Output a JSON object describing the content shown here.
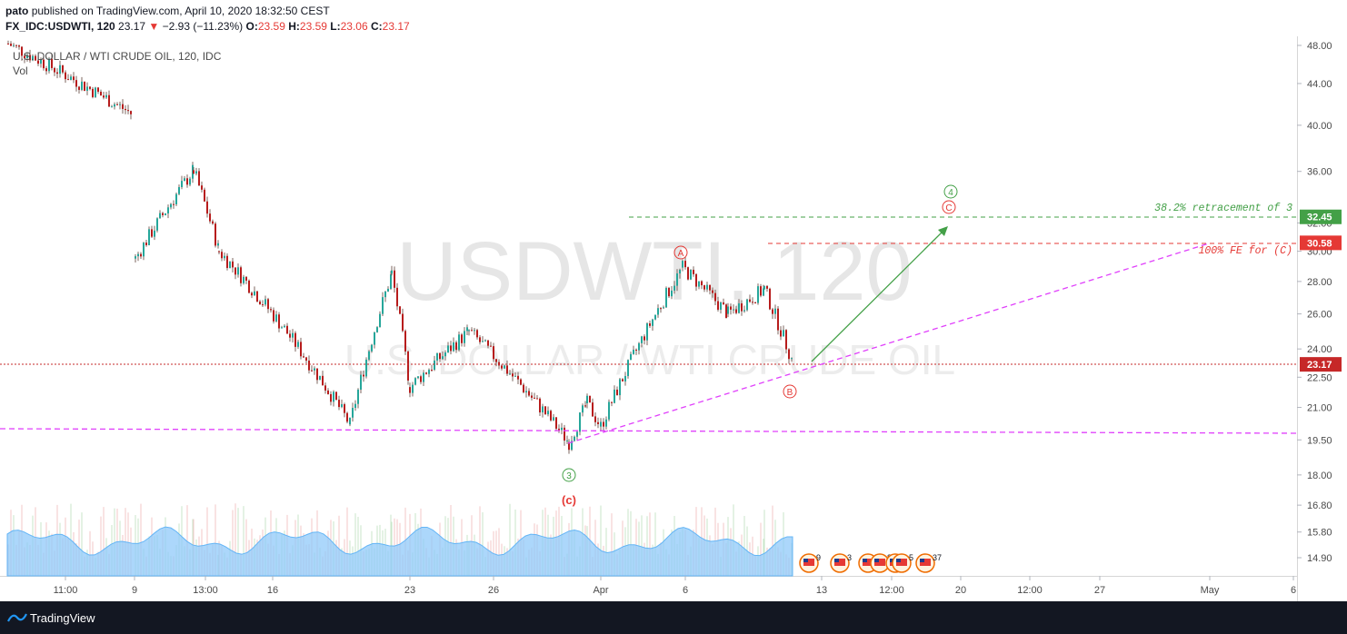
{
  "header": {
    "user": "pato",
    "published": "published on TradingView.com, April 10, 2020 18:32:50 CEST",
    "symbol": "FX_IDC:USDWTI, 120",
    "last": "23.17",
    "change_arrow": "▼",
    "change": "−2.93 (−11.23%)",
    "o_label": "O:",
    "o_value": "23.59",
    "h_label": "H:",
    "h_value": "23.59",
    "l_label": "L:",
    "l_value": "23.06",
    "c_label": "C:",
    "c_value": "23.17"
  },
  "legend": {
    "series_name": "U.S. DOLLAR / WTI CRUDE OIL, 120, IDC",
    "volume_label": "Vol"
  },
  "watermark": {
    "symbol": "USDWTI, 120",
    "description": "U.S. DOLLAR / WTI CRUDE OIL"
  },
  "footer": {
    "brand": "TradingView"
  },
  "colors": {
    "up_candle": "#26a69a",
    "down_candle": "#b71c1c",
    "volume": "#90caf9",
    "green_annotation": "#43a047",
    "red_annotation": "#e53935",
    "magenta_line": "#e040fb",
    "price_line": "#c62828"
  },
  "chart_data": {
    "type": "candlestick",
    "y_axis": {
      "ticks": [
        "48.00",
        "44.00",
        "40.00",
        "36.00",
        "32.00",
        "30.00",
        "28.00",
        "26.00",
        "24.00",
        "22.50",
        "21.00",
        "19.50",
        "18.00",
        "16.80",
        "15.80",
        "14.90"
      ],
      "ylim": [
        14.9,
        48.0
      ],
      "scale": "log"
    },
    "x_axis": {
      "ticks": [
        "11:00",
        "9",
        "13:00",
        "16",
        "23",
        "26",
        "Apr",
        "6",
        "13",
        "12:00",
        "20",
        "12:00",
        "27",
        "May",
        "6"
      ]
    },
    "price_badges": [
      {
        "label": "32.45",
        "value": 32.45,
        "color": "#43a047"
      },
      {
        "label": "30.58",
        "value": 30.58,
        "color": "#e53935"
      },
      {
        "label": "23.17",
        "value": 23.17,
        "color": "#c62828"
      }
    ],
    "swing_points": [
      {
        "date": "2020-03-06",
        "price": 48.2
      },
      {
        "date": "2020-03-09",
        "price": 41.0
      },
      {
        "date": "2020-03-09",
        "price": 29.5
      },
      {
        "date": "2020-03-12",
        "price": 36.1
      },
      {
        "date": "2020-03-18",
        "price": 30.0
      },
      {
        "date": "2020-03-20",
        "price": 20.2
      },
      {
        "date": "2020-03-23",
        "price": 28.5
      },
      {
        "date": "2020-03-24",
        "price": 22.0
      },
      {
        "date": "2020-03-25",
        "price": 25.0
      },
      {
        "date": "2020-03-30",
        "price": 19.4
      },
      {
        "date": "2020-04-01",
        "price": 21.2
      },
      {
        "date": "2020-04-02",
        "price": 20.1
      },
      {
        "date": "2020-04-06",
        "price": 28.9
      },
      {
        "date": "2020-04-08",
        "price": 26.0
      },
      {
        "date": "2020-04-09",
        "price": 27.5
      },
      {
        "date": "2020-04-10",
        "price": 23.17
      }
    ],
    "volume_note": "volume histogram with moving-average area",
    "annotations": [
      {
        "text": "38.2% retracement of 3",
        "price": 32.45,
        "color": "#43a047"
      },
      {
        "text": "100% FE for (C)",
        "price": 30.58,
        "color": "#e53935"
      },
      {
        "text": "A",
        "kind": "wave-circle",
        "color": "#e53935"
      },
      {
        "text": "B",
        "kind": "wave-circle",
        "color": "#e53935"
      },
      {
        "text": "C",
        "kind": "wave-circle",
        "color": "#e53935"
      },
      {
        "text": "3",
        "kind": "wave-circle",
        "color": "#43a047"
      },
      {
        "text": "4",
        "kind": "wave-circle",
        "color": "#43a047"
      },
      {
        "text": "(c)",
        "kind": "label",
        "color": "#e53935"
      }
    ],
    "events": [
      "9",
      "3",
      "5",
      "8",
      "5",
      "5",
      "37"
    ]
  }
}
